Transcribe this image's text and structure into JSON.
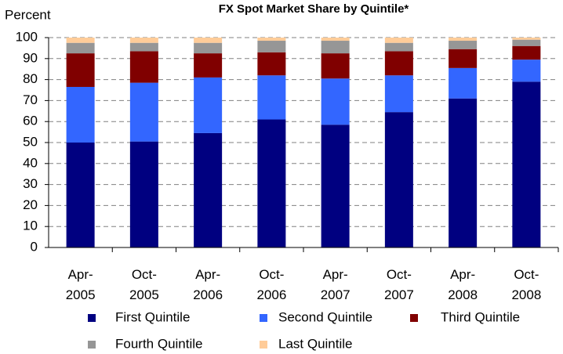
{
  "chart_data": {
    "type": "stacked_bar",
    "title": "FX Spot Market Share by Quintile*",
    "y_axis_label": "Percent",
    "categories": [
      "Apr-2005",
      "Oct-2005",
      "Apr-2006",
      "Oct-2006",
      "Apr-2007",
      "Oct-2007",
      "Apr-2008",
      "Oct-2008"
    ],
    "series": [
      {
        "name": "First Quintile",
        "color": "#000080",
        "values": [
          50,
          50.5,
          54.5,
          61,
          58.5,
          64.5,
          71,
          79
        ]
      },
      {
        "name": "Second Quintile",
        "color": "#3366ff",
        "values": [
          26.5,
          28,
          26.5,
          21,
          22,
          17.5,
          14.5,
          10.5
        ]
      },
      {
        "name": "Third Quintile",
        "color": "#800000",
        "values": [
          16,
          15,
          11.5,
          11,
          12,
          11.5,
          9,
          6.5
        ]
      },
      {
        "name": "Fourth Quintile",
        "color": "#969696",
        "values": [
          5,
          4,
          5,
          5.5,
          6,
          4,
          4,
          3
        ]
      },
      {
        "name": "Last Quintile",
        "color": "#ffcc99",
        "values": [
          2.5,
          2.5,
          2.5,
          1.5,
          1.5,
          2.5,
          1.5,
          1
        ]
      }
    ],
    "ylim": [
      0,
      100
    ],
    "yticks": [
      0,
      10,
      20,
      30,
      40,
      50,
      60,
      70,
      80,
      90,
      100
    ],
    "grid": true,
    "legend_position": "bottom"
  }
}
